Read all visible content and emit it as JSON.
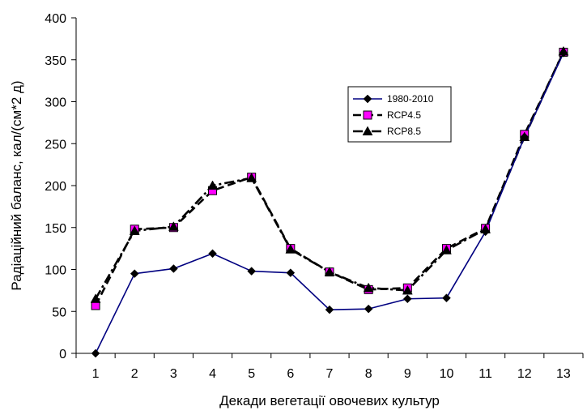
{
  "chart_data": {
    "type": "line",
    "title": "",
    "xlabel": "Декади вегетації овочевих культур",
    "ylabel": "Радіаційний баланс, кал/(см*2 д)",
    "categories": [
      "1",
      "2",
      "3",
      "4",
      "5",
      "6",
      "7",
      "8",
      "9",
      "10",
      "11",
      "12",
      "13"
    ],
    "ylim": [
      0,
      400
    ],
    "yticks": [
      "0",
      "50",
      "100",
      "150",
      "200",
      "250",
      "300",
      "350",
      "400"
    ],
    "grid": false,
    "legend_position": "right",
    "series": [
      {
        "name": "1980-2010",
        "color": "#000080",
        "line": "solid",
        "marker": "diamond",
        "values": [
          0,
          95,
          101,
          119,
          98,
          96,
          52,
          53,
          65,
          66,
          145,
          258,
          358
        ]
      },
      {
        "name": "RCP4.5",
        "color": "#000000",
        "marker_color": "#ff00ff",
        "line": "dashed",
        "marker": "square",
        "values": [
          57,
          148,
          150,
          194,
          210,
          125,
          97,
          76,
          78,
          125,
          149,
          261,
          359
        ]
      },
      {
        "name": "RCP8.5",
        "color": "#000000",
        "line": "dashdot",
        "marker": "triangle",
        "values": [
          65,
          146,
          151,
          200,
          209,
          124,
          97,
          78,
          75,
          123,
          148,
          258,
          360
        ]
      }
    ]
  }
}
